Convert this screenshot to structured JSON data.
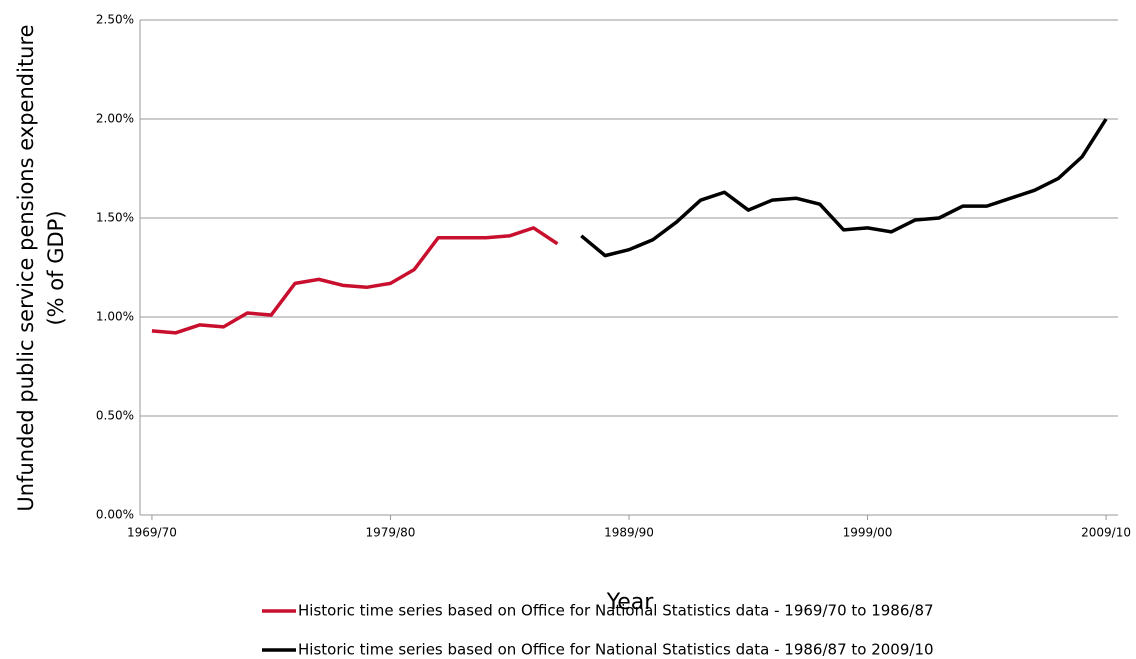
{
  "chart_data": {
    "type": "line",
    "x_label": "Year",
    "y_label": [
      "Unfunded public service pensions expenditure",
      "(% of GDP)"
    ],
    "categories": [
      "1969/70",
      null,
      null,
      null,
      null,
      null,
      null,
      null,
      null,
      null,
      "1979/80",
      null,
      null,
      null,
      null,
      null,
      null,
      null,
      null,
      null,
      "1989/90",
      null,
      null,
      null,
      null,
      null,
      null,
      null,
      null,
      null,
      "1999/00",
      null,
      null,
      null,
      null,
      null,
      null,
      null,
      null,
      null,
      "2009/10"
    ],
    "series": [
      {
        "name": "Historic time series based on Office for National Statistics data - 1969/70 to 1986/87",
        "color": "#c8102e",
        "values": [
          0.93,
          0.92,
          0.96,
          0.95,
          1.02,
          1.01,
          1.17,
          1.19,
          1.16,
          1.15,
          1.17,
          1.24,
          1.4,
          1.4,
          1.4,
          1.41,
          1.45,
          1.37,
          null,
          null,
          null,
          null,
          null,
          null,
          null,
          null,
          null,
          null,
          null,
          null,
          null,
          null,
          null,
          null,
          null,
          null,
          null,
          null,
          null,
          null,
          null
        ]
      },
      {
        "name": "Historic time series based on Office for National Statistics data - 1986/87 to 2009/10",
        "color": "#000000",
        "values": [
          null,
          null,
          null,
          null,
          null,
          null,
          null,
          null,
          null,
          null,
          null,
          null,
          null,
          null,
          null,
          null,
          null,
          null,
          1.41,
          1.31,
          1.34,
          1.39,
          1.48,
          1.59,
          1.63,
          1.54,
          1.59,
          1.6,
          1.57,
          1.44,
          1.45,
          1.43,
          1.49,
          1.5,
          1.56,
          1.56,
          1.6,
          1.64,
          1.7,
          1.81,
          2.0
        ]
      }
    ],
    "ylim": [
      0,
      2.5
    ],
    "yticks": [
      {
        "value": 0,
        "label": "0.00%"
      },
      {
        "value": 0.5,
        "label": "0.50%"
      },
      {
        "value": 1,
        "label": "1.00%"
      },
      {
        "value": 1.5,
        "label": "1.50%"
      },
      {
        "value": 2,
        "label": "2.00%"
      },
      {
        "value": 2.5,
        "label": "2.50%"
      }
    ],
    "grid": true,
    "legend": "bottom"
  }
}
